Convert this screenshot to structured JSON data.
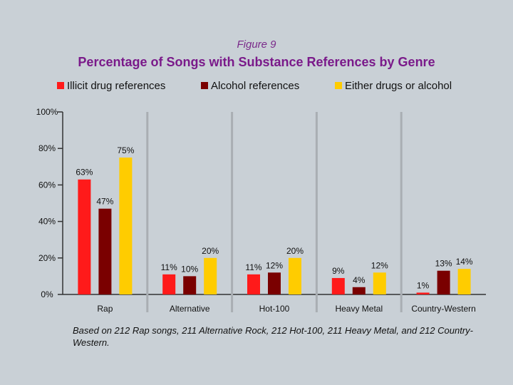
{
  "figure_label": "Figure 9",
  "title": "Percentage of Songs with Substance References by Genre",
  "footnote": "Based on 212 Rap songs, 211 Alternative Rock, 212 Hot-100, 211 Heavy Metal, and 212 Country-Western.",
  "colors": {
    "illicit": "#ff1a1a",
    "alcohol": "#7a0000",
    "either": "#ffcc00",
    "divider": "#a9aeb3",
    "axis": "#333333"
  },
  "chart_data": {
    "type": "bar",
    "title": "Percentage of Songs with Substance References by Genre",
    "categories": [
      "Rap",
      "Alternative",
      "Hot-100",
      "Heavy Metal",
      "Country-Western"
    ],
    "series": [
      {
        "name": "Illicit drug references",
        "values": [
          63,
          11,
          11,
          9,
          1
        ],
        "labels": [
          "63%",
          "11%",
          "11%",
          "9%",
          "1%"
        ]
      },
      {
        "name": "Alcohol references",
        "values": [
          47,
          10,
          12,
          4,
          13
        ],
        "labels": [
          "47%",
          "10%",
          "12%",
          "4%",
          "13%"
        ]
      },
      {
        "name": "Either drugs or alcohol",
        "values": [
          75,
          20,
          20,
          12,
          14
        ],
        "labels": [
          "75%",
          "20%",
          "20%",
          "12%",
          "14%"
        ]
      }
    ],
    "ylim": [
      0,
      100
    ],
    "yticks": [
      0,
      20,
      40,
      60,
      80,
      100
    ],
    "ytick_labels": [
      "0%",
      "20%",
      "40%",
      "60%",
      "80%",
      "100%"
    ],
    "xlabel": "",
    "ylabel": "",
    "legend_position": "top",
    "grid": false
  }
}
